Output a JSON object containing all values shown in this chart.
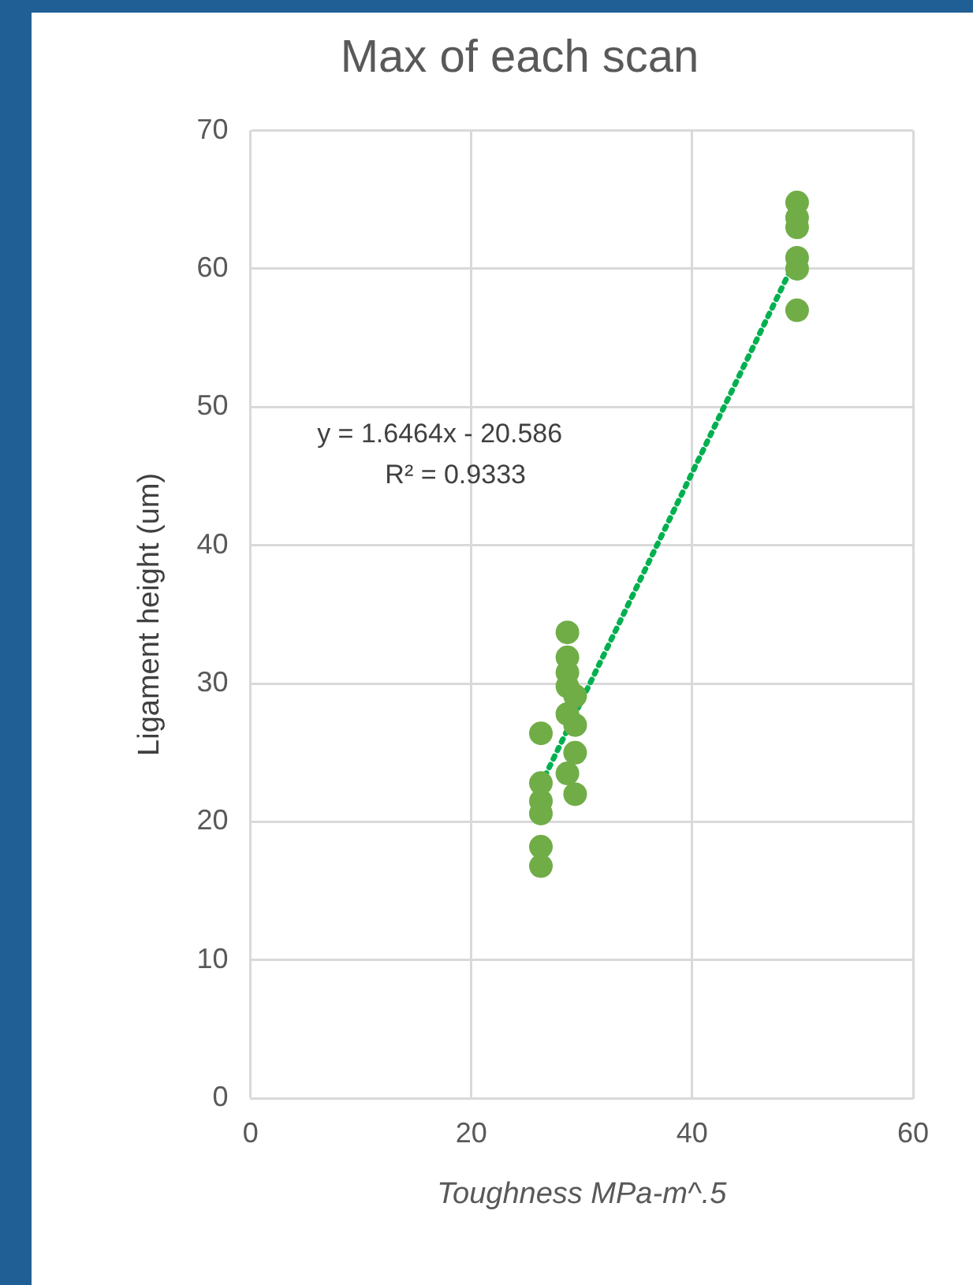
{
  "chart_data": {
    "type": "scatter",
    "title": "Max of each scan",
    "xlabel": "Toughness MPa-m^.5",
    "ylabel": "Ligament height (um)",
    "xlim": [
      0,
      60
    ],
    "xticks": [
      0,
      20,
      40,
      60
    ],
    "ylim": [
      0,
      70
    ],
    "yticks": [
      0,
      10,
      20,
      30,
      40,
      50,
      60,
      70
    ],
    "grid": true,
    "marker": "circle",
    "annotations": [
      "y = 1.6464x - 20.586",
      "R² = 0.9333"
    ],
    "series": [
      {
        "color": "#70ad47",
        "x": [
          26.3,
          26.3,
          26.3,
          26.3,
          26.3,
          26.3,
          28.7,
          28.7,
          28.7,
          28.7,
          28.7,
          28.7,
          29.4,
          29.4,
          29.4,
          29.4,
          49.5,
          49.5,
          49.5,
          49.5,
          49.5,
          49.5
        ],
        "values": [
          26.4,
          22.8,
          21.5,
          20.6,
          18.2,
          16.8,
          33.7,
          31.9,
          30.8,
          29.8,
          27.8,
          23.5,
          29.1,
          27,
          25,
          22,
          64.8,
          63.7,
          63,
          60.8,
          60,
          57
        ]
      },
      {
        "type": "line",
        "color": "#00b050",
        "line_style": "dotted",
        "marker": "none",
        "x": [
          26.3,
          49.5
        ],
        "values": [
          22.7,
          60.9
        ]
      }
    ]
  }
}
